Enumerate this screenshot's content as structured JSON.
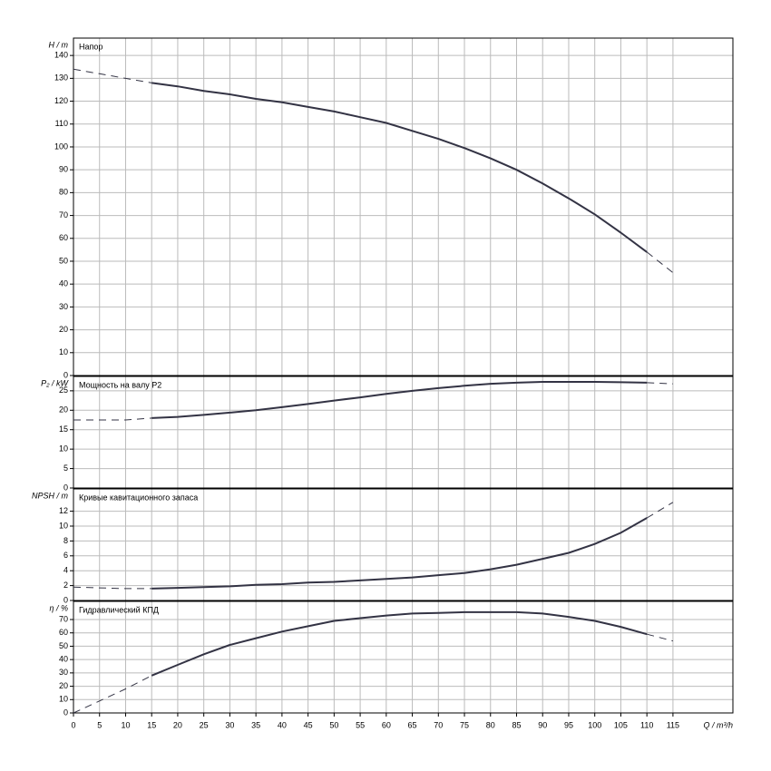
{
  "chart_data": [
    {
      "type": "line",
      "title": "Напор",
      "ylabel": "H / m",
      "x": [
        0,
        5,
        10,
        15,
        20,
        25,
        30,
        35,
        40,
        45,
        50,
        55,
        60,
        65,
        70,
        75,
        80,
        85,
        90,
        95,
        100,
        105,
        110,
        115
      ],
      "series": [
        {
          "color": "#333344",
          "dashed": false,
          "values": [
            null,
            null,
            null,
            128,
            126.5,
            124.5,
            123,
            121,
            119.5,
            117.5,
            115.5,
            113,
            110.5,
            107,
            103.5,
            99.5,
            95,
            90,
            84,
            77.5,
            70.5,
            62.5,
            54,
            null
          ]
        },
        {
          "color": "#333344",
          "dashed": true,
          "values": [
            134,
            132,
            130,
            128,
            null,
            null,
            null,
            null,
            null,
            null,
            null,
            null,
            null,
            null,
            null,
            null,
            null,
            null,
            null,
            null,
            null,
            null,
            54,
            45
          ]
        }
      ],
      "xlim": [
        0,
        126.5
      ],
      "xticks": [
        0,
        5,
        10,
        15,
        20,
        25,
        30,
        35,
        40,
        45,
        50,
        55,
        60,
        65,
        70,
        75,
        80,
        85,
        90,
        95,
        100,
        105,
        110,
        115
      ],
      "ylim": [
        0,
        147.6
      ],
      "yticks": [
        0,
        10,
        20,
        30,
        40,
        50,
        60,
        70,
        80,
        90,
        100,
        110,
        120,
        130,
        140
      ],
      "grid": true
    },
    {
      "type": "line",
      "title": "Мощность на валу P2",
      "ylabel": "P₂ / kW",
      "x": [
        0,
        5,
        10,
        15,
        20,
        25,
        30,
        35,
        40,
        45,
        50,
        55,
        60,
        65,
        70,
        75,
        80,
        85,
        90,
        95,
        100,
        105,
        110,
        115
      ],
      "series": [
        {
          "color": "#333344",
          "dashed": false,
          "values": [
            null,
            null,
            null,
            18,
            18.3,
            18.8,
            19.4,
            20,
            20.8,
            21.6,
            22.5,
            23.3,
            24.2,
            25,
            25.7,
            26.3,
            26.8,
            27.1,
            27.3,
            27.3,
            27.3,
            27.2,
            27.1,
            null
          ]
        },
        {
          "color": "#333344",
          "dashed": true,
          "values": [
            17.5,
            17.5,
            17.5,
            18,
            null,
            null,
            null,
            null,
            null,
            null,
            null,
            null,
            null,
            null,
            null,
            null,
            null,
            null,
            null,
            null,
            null,
            null,
            27.1,
            26.8
          ]
        }
      ],
      "xlim": [
        0,
        126.5
      ],
      "xticks": [
        0,
        5,
        10,
        15,
        20,
        25,
        30,
        35,
        40,
        45,
        50,
        55,
        60,
        65,
        70,
        75,
        80,
        85,
        90,
        95,
        100,
        105,
        110,
        115
      ],
      "ylim": [
        0,
        28.7
      ],
      "yticks": [
        0,
        5,
        10,
        15,
        20,
        25
      ],
      "grid": true
    },
    {
      "type": "line",
      "title": "Кривые кавитационного запаса",
      "ylabel": "NPSH / m",
      "x": [
        0,
        5,
        10,
        15,
        20,
        25,
        30,
        35,
        40,
        45,
        50,
        55,
        60,
        65,
        70,
        75,
        80,
        85,
        90,
        95,
        100,
        105,
        110,
        115
      ],
      "series": [
        {
          "color": "#333344",
          "dashed": false,
          "values": [
            null,
            null,
            null,
            1.6,
            1.7,
            1.8,
            1.9,
            2.1,
            2.2,
            2.4,
            2.5,
            2.7,
            2.9,
            3.1,
            3.4,
            3.7,
            4.2,
            4.8,
            5.6,
            6.4,
            7.6,
            9.1,
            11.1,
            null
          ]
        },
        {
          "color": "#333344",
          "dashed": true,
          "values": [
            1.8,
            1.7,
            1.6,
            1.6,
            null,
            null,
            null,
            null,
            null,
            null,
            null,
            null,
            null,
            null,
            null,
            null,
            null,
            null,
            null,
            null,
            null,
            null,
            11.1,
            13.2
          ]
        }
      ],
      "xlim": [
        0,
        126.5
      ],
      "xticks": [
        0,
        5,
        10,
        15,
        20,
        25,
        30,
        35,
        40,
        45,
        50,
        55,
        60,
        65,
        70,
        75,
        80,
        85,
        90,
        95,
        100,
        105,
        110,
        115
      ],
      "ylim": [
        0,
        15
      ],
      "yticks": [
        0,
        2,
        4,
        6,
        8,
        10,
        12
      ],
      "grid": true
    },
    {
      "type": "line",
      "title": "Гидравлический КПД",
      "ylabel": "η / %",
      "xlabel": "Q / m³/h",
      "x": [
        0,
        5,
        10,
        15,
        20,
        25,
        30,
        35,
        40,
        45,
        50,
        55,
        60,
        65,
        70,
        75,
        80,
        85,
        90,
        95,
        100,
        105,
        110,
        115
      ],
      "series": [
        {
          "color": "#333344",
          "dashed": false,
          "values": [
            null,
            null,
            null,
            28,
            36,
            44,
            51,
            56,
            61,
            65,
            69,
            71,
            73,
            74.5,
            75,
            75.5,
            75.5,
            75.5,
            74.5,
            72,
            69,
            64.5,
            59,
            null
          ]
        },
        {
          "color": "#333344",
          "dashed": true,
          "values": [
            0,
            9,
            18,
            28,
            null,
            null,
            null,
            null,
            null,
            null,
            null,
            null,
            null,
            null,
            null,
            null,
            null,
            null,
            null,
            null,
            null,
            null,
            59,
            54
          ]
        }
      ],
      "xlim": [
        0,
        126.5
      ],
      "xticks": [
        0,
        5,
        10,
        15,
        20,
        25,
        30,
        35,
        40,
        45,
        50,
        55,
        60,
        65,
        70,
        75,
        80,
        85,
        90,
        95,
        100,
        105,
        110,
        115
      ],
      "ylim": [
        0,
        83.6
      ],
      "yticks": [
        0,
        10,
        20,
        30,
        40,
        50,
        60,
        70
      ],
      "grid": true
    }
  ]
}
